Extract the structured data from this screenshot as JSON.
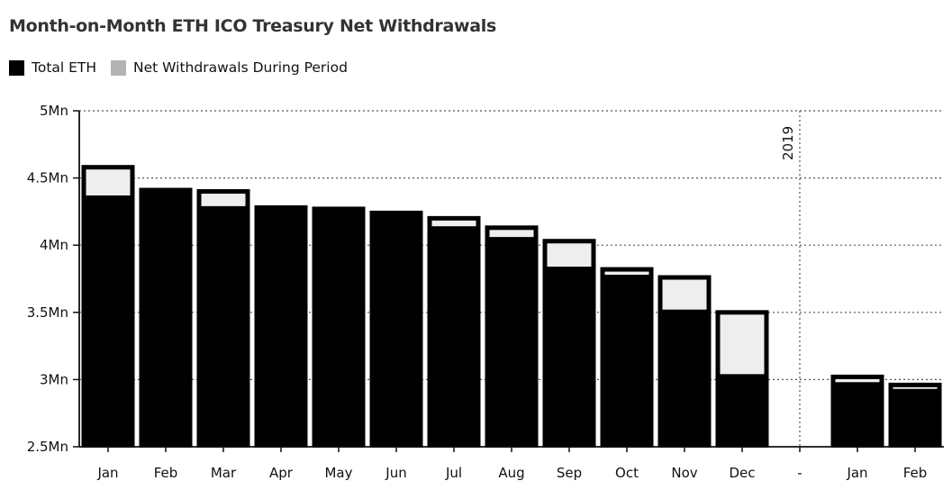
{
  "chart_data": {
    "type": "bar",
    "title": "Month-on-Month ETH ICO Treasury Net Withdrawals",
    "legend": [
      {
        "label": "Total ETH",
        "color": "#000000"
      },
      {
        "label": "Net Withdrawals During Period",
        "color": "#b3b3b3"
      }
    ],
    "categories": [
      "Jan",
      "Feb",
      "Mar",
      "Apr",
      "May",
      "Jun",
      "Jul",
      "Aug",
      "Sep",
      "Oct",
      "Nov",
      "Dec",
      "-",
      "Jan",
      "Feb"
    ],
    "series": [
      {
        "name": "Total ETH",
        "values": [
          4.37,
          4.42,
          4.29,
          4.29,
          4.28,
          4.25,
          4.14,
          4.06,
          3.84,
          3.78,
          3.52,
          3.04,
          null,
          2.98,
          2.93
        ]
      },
      {
        "name": "Net Withdrawals During Period",
        "values": [
          0.22,
          0.0,
          0.12,
          0.0,
          0.0,
          0.0,
          0.07,
          0.08,
          0.2,
          0.05,
          0.25,
          0.47,
          null,
          0.05,
          0.04
        ]
      }
    ],
    "y_ticks": [
      "5Mn",
      "4.5Mn",
      "4Mn",
      "3.5Mn",
      "3Mn",
      "2.5Mn"
    ],
    "y_tick_values": [
      5,
      4.5,
      4,
      3.5,
      3,
      2.5
    ],
    "ylim": [
      2.5,
      5
    ],
    "y_unit": "Mn",
    "divider_label": "2019",
    "grid": true,
    "legend_position": "top-left",
    "colors": {
      "total": "#000000",
      "withdrawal": "#eeeeee",
      "legend_withdrawal": "#b3b3b3"
    }
  }
}
